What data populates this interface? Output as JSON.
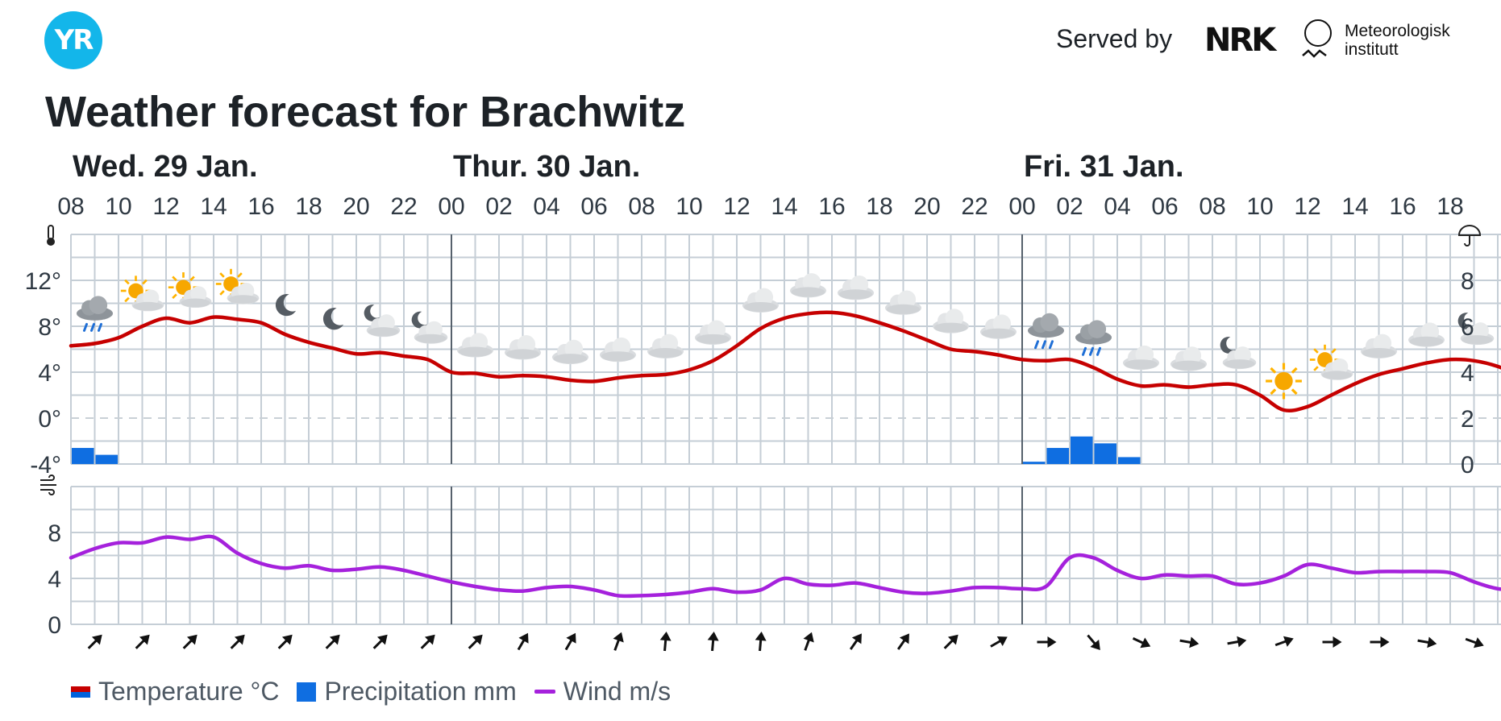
{
  "header": {
    "logo_text": "YR",
    "served_by": "Served by",
    "nrk_logo": "NRK",
    "met_line1": "Meteorologisk",
    "met_line2": "institutt"
  },
  "title": "Weather forecast for Brachwitz",
  "legend": {
    "temperature": "Temperature °C",
    "precipitation": "Precipitation mm",
    "wind": "Wind m/s"
  },
  "colors": {
    "temperature": "#c60000",
    "precipitation": "#0f6ee1",
    "wind": "#a521dc",
    "grid": "#c5ced6",
    "day_line": "#56616c"
  },
  "icons": {
    "temperature_axis": "thermometer-icon",
    "precipitation_axis": "umbrella-icon",
    "wind_axis": "wind-icon"
  },
  "chart_data": {
    "type": "line",
    "days": [
      {
        "label": "Wed. 29 Jan.",
        "start_hour_index": 0
      },
      {
        "label": "Thur. 30 Jan.",
        "start_hour_index": 16
      },
      {
        "label": "Fri. 31 Jan.",
        "start_hour_index": 40
      }
    ],
    "hour_ticks": [
      "08",
      "10",
      "12",
      "14",
      "16",
      "18",
      "20",
      "22",
      "00",
      "02",
      "04",
      "06",
      "08",
      "10",
      "12",
      "14",
      "16",
      "18",
      "20",
      "22",
      "00",
      "02",
      "04",
      "06",
      "08",
      "10",
      "12",
      "14",
      "16",
      "18"
    ],
    "temperature": {
      "name": "Temperature °C",
      "unit": "°C",
      "ylim": [
        -4,
        16
      ],
      "yticks": [
        "12°",
        "8°",
        "4°",
        "0°",
        "-4°"
      ],
      "ytick_values": [
        12,
        8,
        4,
        0,
        -4
      ],
      "values": [
        6.3,
        6.5,
        7.0,
        8.0,
        8.7,
        8.3,
        8.8,
        8.6,
        8.3,
        7.3,
        6.6,
        6.1,
        5.6,
        5.7,
        5.4,
        5.1,
        4.0,
        3.9,
        3.6,
        3.7,
        3.6,
        3.3,
        3.2,
        3.5,
        3.7,
        3.8,
        4.2,
        5.0,
        6.3,
        7.8,
        8.7,
        9.1,
        9.2,
        8.9,
        8.3,
        7.6,
        6.8,
        6.0,
        5.8,
        5.5,
        5.1,
        5.0,
        5.1,
        4.4,
        3.4,
        2.8,
        2.9,
        2.7,
        2.9,
        2.9,
        2.0,
        0.7,
        1.0,
        2.0,
        3.0,
        3.8,
        4.3,
        4.8,
        5.1,
        5.0,
        4.5,
        3.6,
        2.8
      ]
    },
    "precipitation": {
      "name": "Precipitation mm",
      "unit": "mm",
      "ylim": [
        0,
        10
      ],
      "yticks": [
        "8",
        "6",
        "4",
        "2",
        "0"
      ],
      "ytick_values": [
        8,
        6,
        4,
        2,
        0
      ],
      "values": [
        0.7,
        0.4,
        0,
        0,
        0,
        0,
        0,
        0,
        0,
        0,
        0,
        0,
        0,
        0,
        0,
        0,
        0,
        0,
        0,
        0,
        0,
        0,
        0,
        0,
        0,
        0,
        0,
        0,
        0,
        0,
        0,
        0,
        0,
        0,
        0,
        0,
        0,
        0,
        0,
        0,
        0.1,
        0.7,
        1.2,
        0.9,
        0.3,
        0,
        0,
        0,
        0,
        0,
        0,
        0,
        0,
        0,
        0,
        0,
        0,
        0,
        0,
        0,
        0,
        0,
        0
      ]
    },
    "wind": {
      "name": "Wind m/s",
      "unit": "m/s",
      "ylim": [
        0,
        12
      ],
      "yticks": [
        "8",
        "4",
        "0"
      ],
      "ytick_values": [
        8,
        4,
        0
      ],
      "values": [
        5.8,
        6.6,
        7.1,
        7.1,
        7.6,
        7.4,
        7.6,
        6.2,
        5.3,
        4.9,
        5.1,
        4.7,
        4.8,
        5.0,
        4.7,
        4.2,
        3.7,
        3.3,
        3.0,
        2.9,
        3.2,
        3.3,
        3.0,
        2.5,
        2.5,
        2.6,
        2.8,
        3.1,
        2.8,
        3.0,
        4.0,
        3.5,
        3.4,
        3.6,
        3.2,
        2.8,
        2.7,
        2.9,
        3.2,
        3.2,
        3.1,
        3.3,
        5.8,
        5.8,
        4.7,
        4.0,
        4.3,
        4.2,
        4.2,
        3.5,
        3.6,
        4.2,
        5.2,
        4.9,
        4.5,
        4.6,
        4.6,
        4.6,
        4.5,
        3.7,
        3.1,
        3.0,
        3.0
      ]
    },
    "wind_directions_deg": [
      45,
      45,
      45,
      45,
      45,
      45,
      45,
      45,
      45,
      30,
      30,
      20,
      5,
      5,
      5,
      20,
      35,
      35,
      45,
      60,
      90,
      140,
      115,
      100,
      80,
      70,
      90,
      90,
      100,
      110
    ],
    "weather_symbols": [
      {
        "hour_index": 1,
        "icon": "rain-cloud-icon"
      },
      {
        "hour_index": 3,
        "icon": "partly-cloudy-day-icon"
      },
      {
        "hour_index": 5,
        "icon": "partly-cloudy-day-icon"
      },
      {
        "hour_index": 7,
        "icon": "partly-cloudy-day-icon"
      },
      {
        "hour_index": 9,
        "icon": "clear-night-icon"
      },
      {
        "hour_index": 11,
        "icon": "clear-night-icon"
      },
      {
        "hour_index": 13,
        "icon": "partly-cloudy-night-icon"
      },
      {
        "hour_index": 15,
        "icon": "partly-cloudy-night-icon"
      },
      {
        "hour_index": 17,
        "icon": "cloud-icon"
      },
      {
        "hour_index": 19,
        "icon": "cloud-icon"
      },
      {
        "hour_index": 21,
        "icon": "cloud-icon"
      },
      {
        "hour_index": 23,
        "icon": "cloud-icon"
      },
      {
        "hour_index": 25,
        "icon": "cloud-icon"
      },
      {
        "hour_index": 27,
        "icon": "cloud-icon"
      },
      {
        "hour_index": 29,
        "icon": "cloud-icon"
      },
      {
        "hour_index": 31,
        "icon": "cloud-icon"
      },
      {
        "hour_index": 33,
        "icon": "cloud-icon"
      },
      {
        "hour_index": 35,
        "icon": "cloud-icon"
      },
      {
        "hour_index": 37,
        "icon": "cloud-icon"
      },
      {
        "hour_index": 39,
        "icon": "cloud-icon"
      },
      {
        "hour_index": 41,
        "icon": "rain-cloud-icon"
      },
      {
        "hour_index": 43,
        "icon": "rain-cloud-icon"
      },
      {
        "hour_index": 45,
        "icon": "cloud-icon"
      },
      {
        "hour_index": 47,
        "icon": "cloud-icon"
      },
      {
        "hour_index": 49,
        "icon": "partly-cloudy-night-icon"
      },
      {
        "hour_index": 51,
        "icon": "sun-icon"
      },
      {
        "hour_index": 53,
        "icon": "partly-cloudy-day-icon"
      },
      {
        "hour_index": 55,
        "icon": "cloud-icon"
      },
      {
        "hour_index": 57,
        "icon": "cloud-icon"
      },
      {
        "hour_index": 59,
        "icon": "partly-cloudy-night-icon"
      }
    ],
    "grid": true,
    "legend_position": "bottom-left"
  }
}
